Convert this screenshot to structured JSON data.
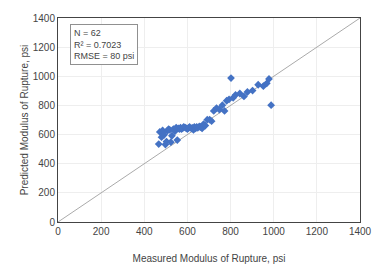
{
  "chart_data": {
    "type": "scatter",
    "xlabel": "Measured Modulus of Rupture, psi",
    "ylabel": "Predicted Modulus of Rupture, psi",
    "xlim": [
      0,
      1400
    ],
    "ylim": [
      0,
      1400
    ],
    "xticks": [
      0,
      200,
      400,
      600,
      800,
      1000,
      1200,
      1400
    ],
    "yticks": [
      0,
      200,
      400,
      600,
      800,
      1000,
      1200,
      1400
    ],
    "grid": true,
    "annotations": [
      "N = 62",
      "R² = 0.7023",
      "RMSE = 80 psi"
    ],
    "series": [
      {
        "type": "scatter",
        "marker": "diamond",
        "color": "#4472C4",
        "x": [
          467,
          472,
          480,
          485,
          488,
          492,
          498,
          503,
          508,
          513,
          518,
          523,
          528,
          535,
          542,
          548,
          553,
          558,
          563,
          568,
          572,
          578,
          583,
          590,
          595,
          600,
          605,
          610,
          618,
          623,
          628,
          632,
          638,
          643,
          648,
          655,
          660,
          668,
          675,
          683,
          692,
          703,
          712,
          722,
          735,
          748,
          762,
          772,
          782,
          793,
          802,
          812,
          823,
          843,
          862,
          878,
          902,
          928,
          952,
          968,
          978,
          988
        ],
        "values": [
          535,
          618,
          582,
          628,
          613,
          598,
          532,
          552,
          627,
          638,
          632,
          548,
          592,
          638,
          622,
          648,
          562,
          643,
          638,
          648,
          638,
          643,
          653,
          648,
          643,
          638,
          645,
          652,
          642,
          646,
          632,
          652,
          642,
          652,
          646,
          656,
          652,
          642,
          672,
          662,
          702,
          702,
          692,
          762,
          782,
          772,
          802,
          762,
          832,
          842,
          988,
          852,
          872,
          882,
          862,
          892,
          902,
          942,
          932,
          952,
          982,
          802
        ]
      },
      {
        "type": "line",
        "color": "#AAAAAA",
        "x": [
          0,
          1400
        ],
        "values": [
          0,
          1400
        ]
      }
    ]
  }
}
